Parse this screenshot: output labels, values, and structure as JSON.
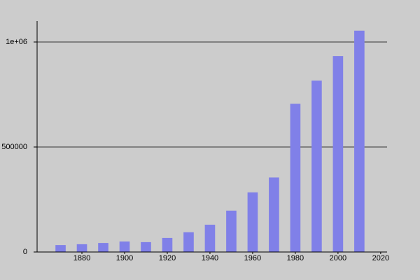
{
  "chart_data": {
    "type": "bar",
    "x": [
      1870,
      1880,
      1890,
      1900,
      1910,
      1920,
      1930,
      1940,
      1950,
      1960,
      1970,
      1980,
      1990,
      2000,
      2010
    ],
    "values": [
      33000,
      37000,
      43000,
      50000,
      47000,
      67000,
      94000,
      130000,
      197000,
      284000,
      355000,
      706000,
      816000,
      933000,
      1054000
    ],
    "color": "#8080e8",
    "xlim": [
      1859,
      2023
    ],
    "xticks": [
      1880,
      1900,
      1920,
      1940,
      1960,
      1980,
      2000,
      2020
    ],
    "ylim": [
      0,
      1100000
    ],
    "yticks": [
      0,
      500000,
      {
        "value": 1000000,
        "label": "1e+06"
      }
    ],
    "grid": true
  }
}
